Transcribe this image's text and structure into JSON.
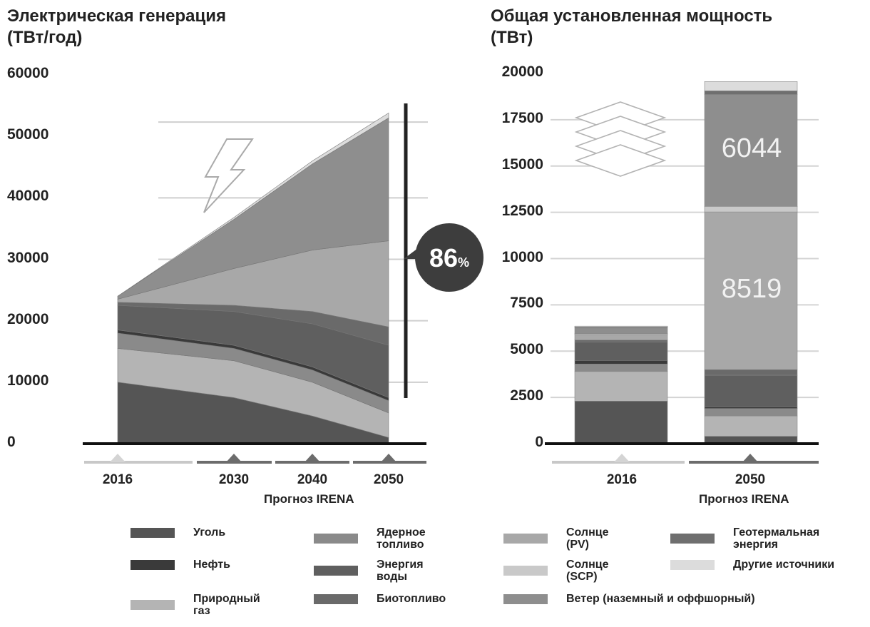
{
  "left_title": "Электрическая генерация\n(ТВт/год)",
  "right_title": "Общая установленная мощность\n(ТВт)",
  "forecast_label": "Прогноз IRENA",
  "badge": {
    "value": "86",
    "unit": "%"
  },
  "colors": {
    "coal": "#555555",
    "oil": "#3a3a3a",
    "gas": "#b4b4b4",
    "nuclear": "#8a8a8a",
    "hydro": "#5f5f5f",
    "bio": "#6a6a6a",
    "pv": "#a8a8a8",
    "csp": "#c9c9c9",
    "wind": "#8e8e8e",
    "geo": "#6f6f6f",
    "other": "#dcdcdc"
  },
  "legend": [
    {
      "key": "coal",
      "label": "Уголь"
    },
    {
      "key": "oil",
      "label": "Нефть"
    },
    {
      "key": "gas",
      "label": "Природный\nгаз"
    },
    {
      "key": "nuclear",
      "label": "Ядерное\nтопливо"
    },
    {
      "key": "hydro",
      "label": "Энергия\nводы"
    },
    {
      "key": "bio",
      "label": "Биотопливо"
    },
    {
      "key": "pv",
      "label": "Солнце\n(PV)"
    },
    {
      "key": "csp",
      "label": "Солнце\n(SCP)"
    },
    {
      "key": "wind",
      "label": "Ветер (наземный и оффшорный)"
    },
    {
      "key": "geo",
      "label": "Геотермальная\nэнергия"
    },
    {
      "key": "other",
      "label": "Другие источники"
    }
  ],
  "chart_data": [
    {
      "type": "area",
      "title": "Электрическая генерация",
      "ylabel": "(ТВт/год)",
      "x": [
        2016,
        2030,
        2040,
        2050
      ],
      "x_tick_labels": [
        "2016",
        "2030",
        "2040",
        "2050"
      ],
      "y_ticks": [
        "60000",
        "50000",
        "40000",
        "30000",
        "20000",
        "10000",
        "0"
      ],
      "ylim": [
        0,
        60000
      ],
      "stacked": true,
      "series": [
        {
          "name": "Уголь",
          "key": "coal",
          "values": [
            10000,
            7500,
            4500,
            1000
          ]
        },
        {
          "name": "Природный газ",
          "key": "gas",
          "values": [
            5500,
            6000,
            5500,
            4000
          ]
        },
        {
          "name": "Ядерное топливо",
          "key": "nuclear",
          "values": [
            2500,
            2000,
            2000,
            2000
          ]
        },
        {
          "name": "Нефть",
          "key": "oil",
          "values": [
            500,
            500,
            500,
            500
          ]
        },
        {
          "name": "Энергия воды",
          "key": "hydro",
          "values": [
            4000,
            5500,
            7000,
            8500
          ]
        },
        {
          "name": "Биотопливо",
          "key": "bio",
          "values": [
            500,
            1000,
            2000,
            3000
          ]
        },
        {
          "name": "Солнце (PV)",
          "key": "pv",
          "values": [
            500,
            6000,
            10000,
            14000
          ]
        },
        {
          "name": "Ветер (наземный и оффшорный)",
          "key": "wind",
          "values": [
            500,
            8000,
            14000,
            20000
          ]
        },
        {
          "name": "Другие источники",
          "key": "other",
          "values": [
            0,
            300,
            500,
            800
          ]
        }
      ],
      "bracket_label": "86%"
    },
    {
      "type": "bar",
      "stacked": true,
      "title": "Общая установленная мощность",
      "ylabel": "(ТВт)",
      "categories": [
        "2016",
        "2050"
      ],
      "y_ticks": [
        "20000",
        "17500",
        "15000",
        "12500",
        "10000",
        "7500",
        "5000",
        "2500",
        "0"
      ],
      "ylim": [
        0,
        20000
      ],
      "series": [
        {
          "name": "Уголь",
          "key": "coal",
          "values": [
            2300,
            400
          ]
        },
        {
          "name": "Природный газ",
          "key": "gas",
          "values": [
            1600,
            1100
          ]
        },
        {
          "name": "Ядерное топливо",
          "key": "nuclear",
          "values": [
            400,
            400
          ]
        },
        {
          "name": "Нефть",
          "key": "oil",
          "values": [
            200,
            100
          ]
        },
        {
          "name": "Энергия воды",
          "key": "hydro",
          "values": [
            1000,
            1700
          ]
        },
        {
          "name": "Биотопливо",
          "key": "bio",
          "values": [
            100,
            300
          ]
        },
        {
          "name": "Солнце (PV)",
          "key": "pv",
          "values": [
            300,
            8519
          ]
        },
        {
          "name": "Солнце (SCP)",
          "key": "csp",
          "values": [
            50,
            300
          ]
        },
        {
          "name": "Ветер (наземный и оффшорный)",
          "key": "wind",
          "values": [
            300,
            6044
          ]
        },
        {
          "name": "Геотермальная энергия",
          "key": "geo",
          "values": [
            50,
            200
          ]
        },
        {
          "name": "Другие источники",
          "key": "other",
          "values": [
            50,
            500
          ]
        }
      ],
      "bar_labels": [
        {
          "category": "2050",
          "series": "Ветер (наземный и оффшорный)",
          "text": "6044"
        },
        {
          "category": "2050",
          "series": "Солнце (PV)",
          "text": "8519"
        }
      ]
    }
  ]
}
